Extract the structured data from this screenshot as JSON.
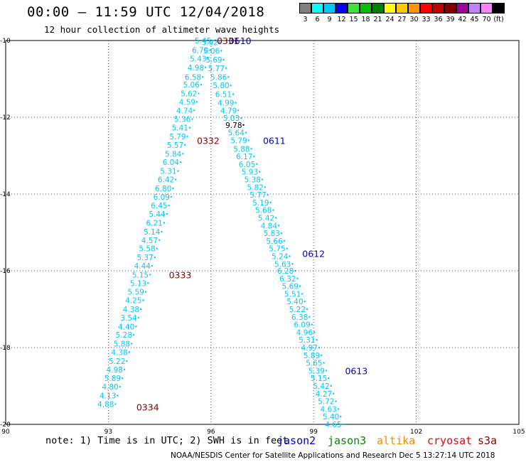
{
  "header": {
    "title": "00:00 – 11:59 UTC 12/04/2018",
    "subtitle": "12 hour collection of altimeter wave heights"
  },
  "colorbar": {
    "bins": [
      {
        "color": "#808080",
        "label": "3"
      },
      {
        "color": "#00ffff",
        "label": "6"
      },
      {
        "color": "#00c8ff",
        "label": "9"
      },
      {
        "color": "#0000ff",
        "label": "12"
      },
      {
        "color": "#40e040",
        "label": "15"
      },
      {
        "color": "#00c000",
        "label": "18"
      },
      {
        "color": "#008000",
        "label": "21"
      },
      {
        "color": "#ffff00",
        "label": "24"
      },
      {
        "color": "#ffc800",
        "label": "27"
      },
      {
        "color": "#ff9600",
        "label": "30"
      },
      {
        "color": "#ff0000",
        "label": "33"
      },
      {
        "color": "#c00000",
        "label": "36"
      },
      {
        "color": "#800000",
        "label": "39"
      },
      {
        "color": "#a000a0",
        "label": "42"
      },
      {
        "color": "#c080ff",
        "label": "45"
      },
      {
        "color": "#ff80ff",
        "label": "70"
      },
      {
        "color": "#000000",
        "label": "(ft)"
      }
    ]
  },
  "footer": {
    "note": "note: 1) Time is in UTC; 2) SWH is in feet",
    "legend": [
      {
        "name": "jason2",
        "color": "#0000cc"
      },
      {
        "name": "jason3",
        "color": "#008800"
      },
      {
        "name": "altika",
        "color": "#ff8800"
      },
      {
        "name": "cryosat",
        "color": "#ee0000"
      },
      {
        "name": "s3a",
        "color": "#880000"
      }
    ],
    "credit": "NOAA/NESDIS Center for Satellite Applications and Research   Dec  5 13:27:14 UTC 2018"
  },
  "chart_data": {
    "type": "scatter",
    "xlim": [
      90,
      105
    ],
    "ylim": [
      -20,
      -10
    ],
    "x_ticks": [
      "90",
      "93",
      "96",
      "99",
      "102",
      "105"
    ],
    "y_ticks": [
      "-10",
      "-12",
      "-14",
      "-16",
      "-18",
      "-20"
    ],
    "grid": true,
    "series": [
      {
        "name": "s3a",
        "color": "#00c8ff",
        "points": [
          {
            "x": 96.05,
            "y": -10.0,
            "v": "5.45"
          },
          {
            "x": 95.97,
            "y": -10.25,
            "v": "6.70"
          },
          {
            "x": 95.91,
            "y": -10.47,
            "v": "5.43"
          },
          {
            "x": 95.84,
            "y": -10.7,
            "v": "4.98"
          },
          {
            "x": 95.76,
            "y": -10.95,
            "v": "6.58"
          },
          {
            "x": 95.71,
            "y": -11.15,
            "v": "5.06"
          },
          {
            "x": 95.64,
            "y": -11.38,
            "v": "5.62"
          },
          {
            "x": 95.59,
            "y": -11.6,
            "v": "4.59"
          },
          {
            "x": 95.51,
            "y": -11.82,
            "v": "4.74"
          },
          {
            "x": 95.45,
            "y": -12.05,
            "v": "5.36"
          },
          {
            "x": 95.38,
            "y": -12.27,
            "v": "5.41"
          },
          {
            "x": 95.31,
            "y": -12.5,
            "v": "5.79"
          },
          {
            "x": 95.24,
            "y": -12.72,
            "v": "5.57"
          },
          {
            "x": 95.18,
            "y": -12.95,
            "v": "5.84"
          },
          {
            "x": 95.11,
            "y": -13.17,
            "v": "6.04"
          },
          {
            "x": 95.04,
            "y": -13.4,
            "v": "5.31"
          },
          {
            "x": 94.97,
            "y": -13.62,
            "v": "6.42"
          },
          {
            "x": 94.89,
            "y": -13.85,
            "v": "6.80"
          },
          {
            "x": 94.84,
            "y": -14.07,
            "v": "6.09"
          },
          {
            "x": 94.77,
            "y": -14.3,
            "v": "6.45"
          },
          {
            "x": 94.71,
            "y": -14.52,
            "v": "5.44"
          },
          {
            "x": 94.63,
            "y": -14.75,
            "v": "6.21"
          },
          {
            "x": 94.56,
            "y": -14.98,
            "v": "5.14"
          },
          {
            "x": 94.49,
            "y": -15.2,
            "v": "4.57"
          },
          {
            "x": 94.42,
            "y": -15.42,
            "v": "5.58"
          },
          {
            "x": 94.36,
            "y": -15.65,
            "v": "5.37"
          },
          {
            "x": 94.28,
            "y": -15.87,
            "v": "4.44"
          },
          {
            "x": 94.22,
            "y": -16.1,
            "v": "5.15"
          },
          {
            "x": 94.16,
            "y": -16.32,
            "v": "5.13"
          },
          {
            "x": 94.09,
            "y": -16.55,
            "v": "5.59"
          },
          {
            "x": 94.02,
            "y": -16.77,
            "v": "4.25"
          },
          {
            "x": 93.95,
            "y": -17.0,
            "v": "4.38"
          },
          {
            "x": 93.88,
            "y": -17.22,
            "v": "3.54"
          },
          {
            "x": 93.81,
            "y": -17.45,
            "v": "4.40"
          },
          {
            "x": 93.74,
            "y": -17.67,
            "v": "5.28"
          },
          {
            "x": 93.68,
            "y": -17.9,
            "v": "5.88"
          },
          {
            "x": 93.61,
            "y": -18.12,
            "v": "4.38"
          },
          {
            "x": 93.54,
            "y": -18.35,
            "v": "5.22"
          },
          {
            "x": 93.47,
            "y": -18.57,
            "v": "4.98"
          },
          {
            "x": 93.41,
            "y": -18.8,
            "v": "5.89"
          },
          {
            "x": 93.34,
            "y": -19.02,
            "v": "4.80"
          },
          {
            "x": 93.27,
            "y": -19.25,
            "v": "4.13"
          },
          {
            "x": 93.21,
            "y": -19.47,
            "v": "4.88"
          }
        ]
      },
      {
        "name": "jason2",
        "color": "#00c8ff",
        "points": [
          {
            "x": 96.25,
            "y": -10.05,
            "v": "5.92"
          },
          {
            "x": 96.3,
            "y": -10.27,
            "v": "5.06"
          },
          {
            "x": 96.37,
            "y": -10.5,
            "v": "5.69"
          },
          {
            "x": 96.44,
            "y": -10.72,
            "v": "5.77"
          },
          {
            "x": 96.51,
            "y": -10.95,
            "v": "5.86"
          },
          {
            "x": 96.58,
            "y": -11.17,
            "v": "5.80"
          },
          {
            "x": 96.65,
            "y": -11.4,
            "v": "6.51"
          },
          {
            "x": 96.72,
            "y": -11.62,
            "v": "4.99"
          },
          {
            "x": 96.8,
            "y": -11.82,
            "v": "4.79"
          },
          {
            "x": 96.88,
            "y": -12.02,
            "v": "5.03"
          },
          {
            "x": 96.95,
            "y": -12.2,
            "v": "9.78",
            "color": "#000000"
          },
          {
            "x": 97.02,
            "y": -12.4,
            "v": "5.64"
          },
          {
            "x": 97.1,
            "y": -12.6,
            "v": "5.79"
          },
          {
            "x": 97.18,
            "y": -12.82,
            "v": "5.88"
          },
          {
            "x": 97.26,
            "y": -13.02,
            "v": "6.17"
          },
          {
            "x": 97.34,
            "y": -13.22,
            "v": "6.05"
          },
          {
            "x": 97.42,
            "y": -13.42,
            "v": "5.93"
          },
          {
            "x": 97.5,
            "y": -13.62,
            "v": "5.38"
          },
          {
            "x": 97.58,
            "y": -13.82,
            "v": "5.82"
          },
          {
            "x": 97.66,
            "y": -14.02,
            "v": "5.77"
          },
          {
            "x": 97.74,
            "y": -14.22,
            "v": "5.19"
          },
          {
            "x": 97.82,
            "y": -14.42,
            "v": "5.68"
          },
          {
            "x": 97.9,
            "y": -14.62,
            "v": "5.42"
          },
          {
            "x": 97.98,
            "y": -14.82,
            "v": "4.84"
          },
          {
            "x": 98.06,
            "y": -15.02,
            "v": "5.83"
          },
          {
            "x": 98.14,
            "y": -15.22,
            "v": "5.66"
          },
          {
            "x": 98.22,
            "y": -15.42,
            "v": "5.75"
          },
          {
            "x": 98.3,
            "y": -15.62,
            "v": "5.24"
          },
          {
            "x": 98.38,
            "y": -15.82,
            "v": "5.63"
          },
          {
            "x": 98.46,
            "y": -16.0,
            "v": "6.28"
          },
          {
            "x": 98.53,
            "y": -16.2,
            "v": "6.32"
          },
          {
            "x": 98.6,
            "y": -16.4,
            "v": "5.69"
          },
          {
            "x": 98.67,
            "y": -16.6,
            "v": "5.51"
          },
          {
            "x": 98.74,
            "y": -16.8,
            "v": "5.40"
          },
          {
            "x": 98.81,
            "y": -17.0,
            "v": "5.22"
          },
          {
            "x": 98.88,
            "y": -17.2,
            "v": "6.38"
          },
          {
            "x": 98.95,
            "y": -17.4,
            "v": "6.09"
          },
          {
            "x": 99.02,
            "y": -17.6,
            "v": "4.96"
          },
          {
            "x": 99.09,
            "y": -17.8,
            "v": "5.31"
          },
          {
            "x": 99.16,
            "y": -18.0,
            "v": "4.97"
          },
          {
            "x": 99.23,
            "y": -18.2,
            "v": "5.89"
          },
          {
            "x": 99.3,
            "y": -18.4,
            "v": "5.65"
          },
          {
            "x": 99.37,
            "y": -18.6,
            "v": "5.39"
          },
          {
            "x": 99.44,
            "y": -18.8,
            "v": "5.15"
          },
          {
            "x": 99.51,
            "y": -19.0,
            "v": "5.42"
          },
          {
            "x": 99.58,
            "y": -19.2,
            "v": "4.27"
          },
          {
            "x": 99.65,
            "y": -19.4,
            "v": "5.72"
          },
          {
            "x": 99.72,
            "y": -19.6,
            "v": "4.63"
          },
          {
            "x": 99.79,
            "y": -19.8,
            "v": "5.40"
          },
          {
            "x": 99.86,
            "y": -20.0,
            "v": "4.65"
          }
        ]
      }
    ],
    "time_labels": [
      {
        "x": 96.5,
        "y": -10.0,
        "text": "0331",
        "color": "#880000"
      },
      {
        "x": 95.92,
        "y": -12.6,
        "text": "0332",
        "color": "#880000"
      },
      {
        "x": 95.1,
        "y": -16.1,
        "text": "0333",
        "color": "#880000"
      },
      {
        "x": 94.15,
        "y": -19.55,
        "text": "0334",
        "color": "#880000"
      },
      {
        "x": 96.85,
        "y": -10.0,
        "text": "0610",
        "color": "#0000cc"
      },
      {
        "x": 97.85,
        "y": -12.6,
        "text": "0611",
        "color": "#0000cc"
      },
      {
        "x": 99.0,
        "y": -15.55,
        "text": "0612",
        "color": "#0000cc"
      },
      {
        "x": 100.25,
        "y": -18.6,
        "text": "0613",
        "color": "#0000cc"
      }
    ]
  }
}
